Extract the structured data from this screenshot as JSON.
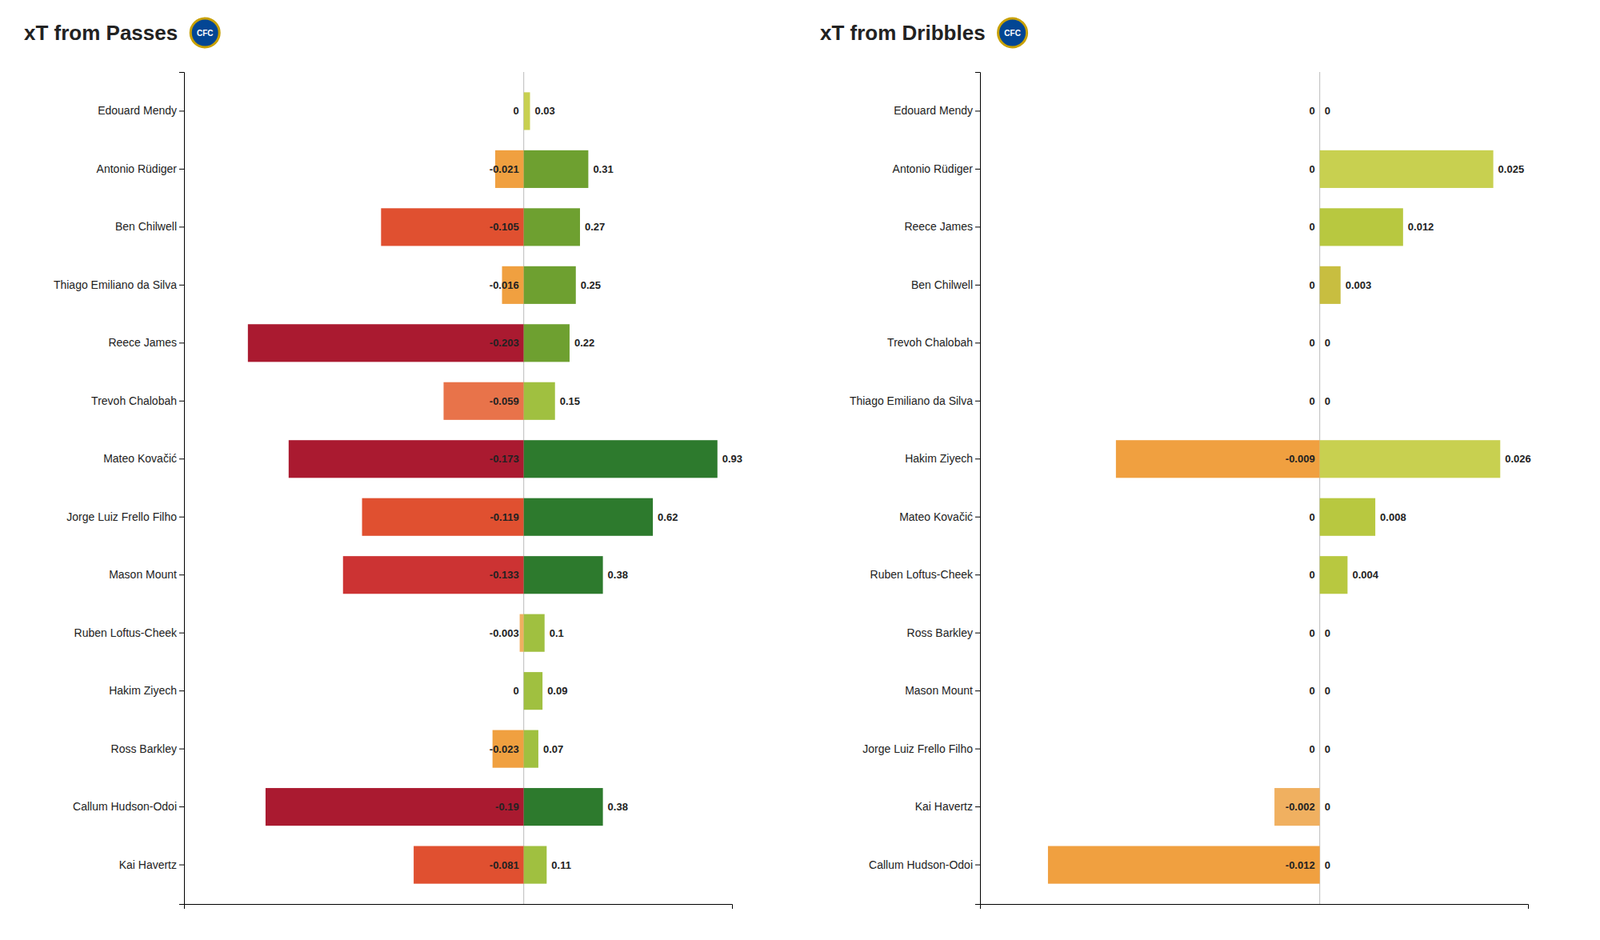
{
  "chart_data": [
    {
      "type": "bar",
      "orientation": "horizontal",
      "title": "xT from Passes",
      "annotations": [
        "CFC"
      ],
      "categories": [
        "Edouard Mendy",
        "Antonio Rüdiger",
        "Ben Chilwell",
        "Thiago Emiliano da Silva",
        "Reece James",
        "Trevoh Chalobah",
        "Mateo Kovačić",
        "Jorge Luiz Frello Filho",
        "Mason Mount",
        "Ruben Loftus-Cheek",
        "Hakim Ziyech",
        "Ross Barkley",
        "Callum Hudson-Odoi",
        "Kai Havertz"
      ],
      "series": [
        {
          "values": [
            0,
            -0.021,
            -0.105,
            -0.016,
            -0.203,
            -0.059,
            -0.173,
            -0.119,
            -0.133,
            -0.003,
            0,
            -0.023,
            -0.19,
            -0.081
          ],
          "colors": [
            "#e8734a",
            "#f0a040",
            "#e05030",
            "#f0a040",
            "#aa1a30",
            "#e8734a",
            "#aa1a30",
            "#e05030",
            "#cc3333",
            "#f0b060",
            "#e8734a",
            "#f0a040",
            "#aa1a30",
            "#e05030"
          ]
        },
        {
          "values": [
            0.03,
            0.31,
            0.27,
            0.25,
            0.22,
            0.15,
            0.93,
            0.62,
            0.38,
            0.1,
            0.09,
            0.07,
            0.38,
            0.11
          ],
          "colors": [
            "#c8d050",
            "#6ea030",
            "#6ea030",
            "#6ea030",
            "#6ea030",
            "#a0c040",
            "#2d7a2d",
            "#2d7a2d",
            "#2d7a2d",
            "#a0c040",
            "#a0c040",
            "#a0c040",
            "#2d7a2d",
            "#a0c040"
          ]
        }
      ],
      "xlim": [
        -0.25,
        1.0
      ],
      "tick_labels": "y",
      "data_labels": true,
      "grid": false
    },
    {
      "type": "bar",
      "orientation": "horizontal",
      "title": "xT from Dribbles",
      "annotations": [
        "CFC"
      ],
      "categories": [
        "Edouard Mendy",
        "Antonio Rüdiger",
        "Reece James",
        "Ben Chilwell",
        "Trevoh Chalobah",
        "Thiago Emiliano da Silva",
        "Hakim Ziyech",
        "Mateo Kovačić",
        "Ruben Loftus-Cheek",
        "Ross Barkley",
        "Mason Mount",
        "Jorge Luiz Frello Filho",
        "Kai Havertz",
        "Callum Hudson-Odoi"
      ],
      "series": [
        {
          "values": [
            0,
            0,
            0,
            0,
            0,
            0,
            -0.009,
            0,
            0,
            0,
            0,
            0,
            -0.002,
            -0.012
          ],
          "colors": [
            "#e8734a",
            "#e8734a",
            "#e8734a",
            "#e8734a",
            "#e8734a",
            "#e8734a",
            "#f0a040",
            "#e8734a",
            "#e8734a",
            "#e8734a",
            "#e8734a",
            "#e8734a",
            "#f0b060",
            "#f0a040"
          ]
        },
        {
          "values": [
            0,
            0.025,
            0.012,
            0.003,
            0,
            0,
            0.026,
            0.008,
            0.004,
            0,
            0,
            0,
            0,
            0
          ],
          "colors": [
            "#c8be40",
            "#c8d050",
            "#b8c840",
            "#c8be40",
            "#c8be40",
            "#c8be40",
            "#c8d050",
            "#b8c840",
            "#b8c840",
            "#c8be40",
            "#c8be40",
            "#c8be40",
            "#c8be40",
            "#c8be40"
          ]
        }
      ],
      "xlim": [
        -0.015,
        0.03
      ],
      "tick_labels": "y",
      "data_labels": true,
      "grid": false
    }
  ]
}
